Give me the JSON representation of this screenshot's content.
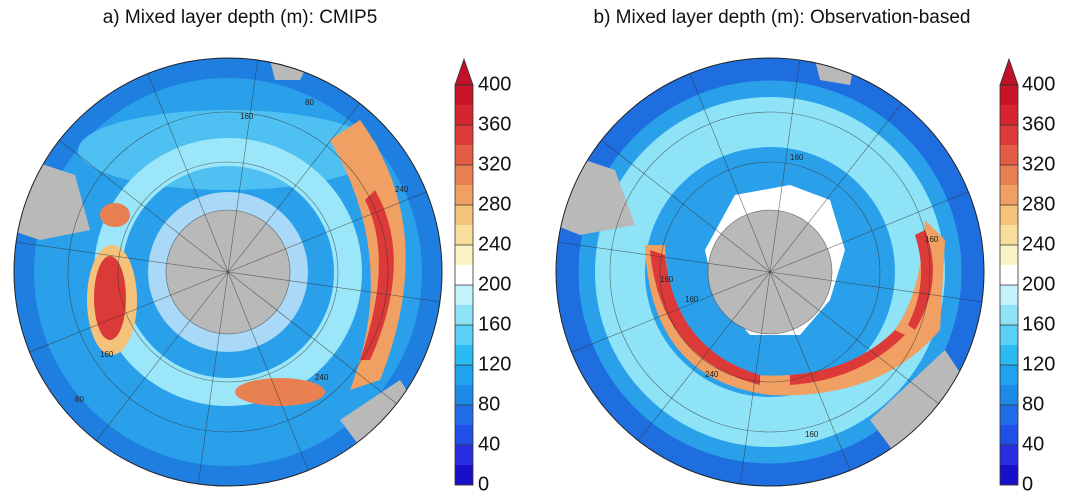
{
  "panels": [
    {
      "title": "a) Mixed layer depth (m): CMIP5",
      "colorbar": {
        "lim": [
          0,
          400
        ],
        "ticks": [
          0,
          40,
          80,
          120,
          160,
          200,
          240,
          280,
          320,
          360,
          400
        ],
        "colors": [
          "#1a0fc8",
          "#2a2ee0",
          "#1f4fe6",
          "#1f6ee8",
          "#1e8ae8",
          "#1fa3ee",
          "#2bbaf2",
          "#5ad0f5",
          "#8fe3f7",
          "#c3f2fa",
          "#ffffff",
          "#fbf3c6",
          "#f8de9c",
          "#f5c27a",
          "#f0a062",
          "#e98052",
          "#e35c45",
          "#dc3a39",
          "#d42530",
          "#c81426"
        ],
        "extend_color": "#c0102a"
      },
      "contour_labels": [
        160,
        80,
        240,
        160,
        240,
        80
      ]
    },
    {
      "title": "b) Mixed layer depth (m): Observation-based",
      "colorbar": {
        "lim": [
          0,
          400
        ],
        "ticks": [
          0,
          40,
          80,
          120,
          160,
          200,
          240,
          280,
          320,
          360,
          400
        ],
        "colors": [
          "#1a0fc8",
          "#2a2ee0",
          "#1f4fe6",
          "#1f6ee8",
          "#1e8ae8",
          "#1fa3ee",
          "#2bbaf2",
          "#5ad0f5",
          "#8fe3f7",
          "#c3f2fa",
          "#ffffff",
          "#fbf3c6",
          "#f8de9c",
          "#f5c27a",
          "#f0a062",
          "#e98052",
          "#e35c45",
          "#dc3a39",
          "#d42530",
          "#c81426"
        ],
        "extend_color": "#c0102a"
      },
      "contour_labels": [
        160,
        160,
        160,
        240,
        160,
        160
      ]
    }
  ]
}
